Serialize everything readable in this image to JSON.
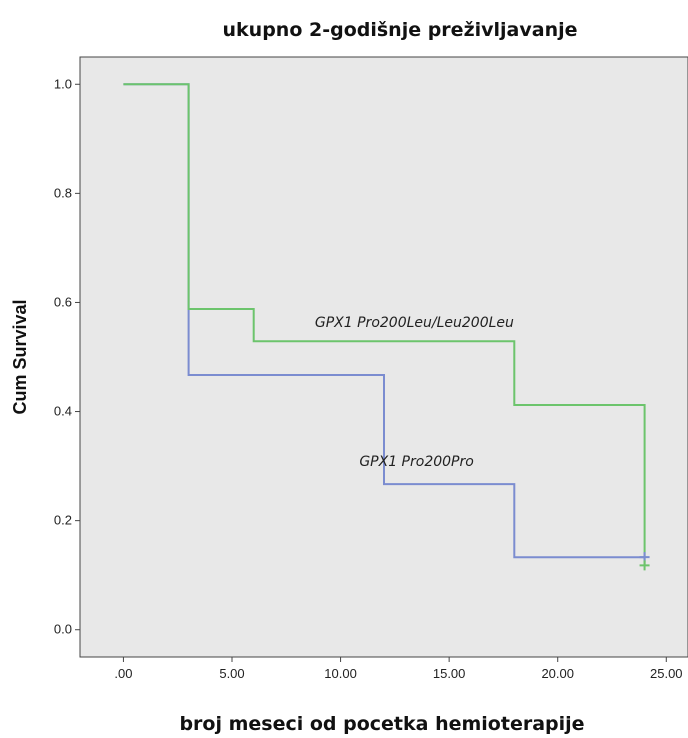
{
  "chart_data": {
    "type": "line",
    "step": true,
    "title": "ukupno 2-godišnje preživljavanje",
    "xlabel": "broj meseci od pocetka hemioterapije",
    "ylabel": "Cum Survival",
    "xlim": [
      -2,
      26
    ],
    "ylim": [
      -0.05,
      1.05
    ],
    "x_ticks": [
      0,
      5,
      10,
      15,
      20,
      25
    ],
    "x_tick_labels": [
      ".00",
      "5.00",
      "10.00",
      "15.00",
      "20.00",
      "25.00"
    ],
    "y_ticks": [
      0.0,
      0.2,
      0.4,
      0.6,
      0.8,
      1.0
    ],
    "y_tick_labels": [
      "0.0",
      "0.2",
      "0.4",
      "0.6",
      "0.8",
      "1.0"
    ],
    "plot_background": "#e8e8e8",
    "grid": false,
    "legend": "none",
    "series": [
      {
        "label": "GPX1 Pro200Pro",
        "color": "#7b8cd0",
        "x": [
          0,
          3,
          3,
          12,
          12,
          18,
          18,
          24
        ],
        "y": [
          1.0,
          1.0,
          0.467,
          0.467,
          0.267,
          0.267,
          0.133,
          0.133
        ],
        "censored": [
          {
            "x": 24,
            "y": 0.133
          }
        ],
        "label_at": {
          "x": 13.5,
          "y": 0.3
        }
      },
      {
        "label": "GPX1 Pro200Leu/Leu200Leu",
        "color": "#6cc46c",
        "x": [
          0,
          3,
          3,
          6,
          6,
          18,
          18,
          24,
          24
        ],
        "y": [
          1.0,
          1.0,
          0.588,
          0.588,
          0.529,
          0.529,
          0.412,
          0.412,
          0.118
        ],
        "censored": [
          {
            "x": 24,
            "y": 0.118
          }
        ],
        "label_at": {
          "x": 13.4,
          "y": 0.555
        }
      }
    ]
  }
}
